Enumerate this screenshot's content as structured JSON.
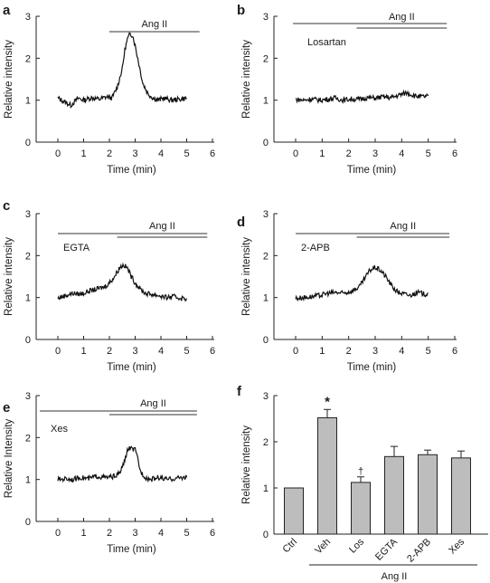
{
  "chart_data": [
    {
      "panel": "a",
      "type": "line",
      "xlabel": "Time (min)",
      "ylabel": "Relative intensity",
      "xlim": [
        -0.5,
        6
      ],
      "ylim": [
        0,
        3
      ],
      "xticks": [
        "0",
        "1",
        "2",
        "3",
        "4",
        "5",
        "6"
      ],
      "yticks": [
        "0",
        "1",
        "2",
        "3"
      ],
      "bars": [
        {
          "label": "Ang II",
          "x0": 2.0,
          "x1": 5.5
        }
      ],
      "series": [
        {
          "x": [
            0,
            0.2,
            0.5,
            0.8,
            1,
            1.3,
            1.6,
            1.9,
            2.1,
            2.3,
            2.5,
            2.6,
            2.7,
            2.8,
            2.9,
            3.0,
            3.1,
            3.2,
            3.3,
            3.5,
            3.7,
            3.9,
            4.1,
            4.4,
            4.7,
            5.0
          ],
          "y": [
            1.05,
            0.98,
            0.88,
            1.05,
            1.0,
            1.06,
            1.02,
            1.08,
            1.05,
            1.3,
            1.75,
            2.2,
            2.45,
            2.58,
            2.55,
            2.3,
            2.0,
            1.7,
            1.4,
            1.15,
            1.05,
            1.0,
            1.05,
            1.0,
            1.02,
            1.05
          ]
        }
      ]
    },
    {
      "panel": "b",
      "type": "line",
      "xlabel": "Time (min)",
      "ylabel": "Relative intensity",
      "xlim": [
        -0.5,
        6
      ],
      "ylim": [
        0,
        3
      ],
      "xticks": [
        "0",
        "1",
        "2",
        "3",
        "4",
        "5",
        "6"
      ],
      "yticks": [
        "0",
        "1",
        "2",
        "3"
      ],
      "bars": [
        {
          "label": "Losartan",
          "x0": -0.1,
          "x1": 5.7
        },
        {
          "label": "Ang II",
          "x0": 2.3,
          "x1": 5.7
        }
      ],
      "series": [
        {
          "x": [
            0,
            0.3,
            0.6,
            0.9,
            1.2,
            1.5,
            1.8,
            2.1,
            2.4,
            2.7,
            3.0,
            3.3,
            3.6,
            3.9,
            4.2,
            4.5,
            4.8,
            5.0
          ],
          "y": [
            1.02,
            1.0,
            1.03,
            1.0,
            1.02,
            1.05,
            1.0,
            1.03,
            1.02,
            1.06,
            1.05,
            1.08,
            1.06,
            1.12,
            1.18,
            1.1,
            1.08,
            1.1
          ]
        }
      ]
    },
    {
      "panel": "c",
      "type": "line",
      "xlabel": "Time (min)",
      "ylabel": "Relative intensity",
      "xlim": [
        -0.5,
        6
      ],
      "ylim": [
        0,
        3
      ],
      "xticks": [
        "0",
        "1",
        "2",
        "3",
        "4",
        "5",
        "6"
      ],
      "yticks": [
        "0",
        "1",
        "2",
        "3"
      ],
      "bars": [
        {
          "label": "EGTA",
          "x0": 0.0,
          "x1": 5.8
        },
        {
          "label": "Ang II",
          "x0": 2.3,
          "x1": 5.8
        }
      ],
      "series": [
        {
          "x": [
            0,
            0.3,
            0.6,
            0.9,
            1.2,
            1.5,
            1.8,
            2.0,
            2.2,
            2.4,
            2.55,
            2.7,
            2.85,
            3.0,
            3.2,
            3.4,
            3.6,
            3.9,
            4.2,
            4.5,
            4.8,
            5.0
          ],
          "y": [
            0.98,
            1.05,
            1.1,
            1.08,
            1.15,
            1.2,
            1.25,
            1.35,
            1.5,
            1.72,
            1.78,
            1.7,
            1.5,
            1.35,
            1.2,
            1.1,
            1.08,
            1.05,
            1.0,
            1.02,
            0.98,
            0.98
          ]
        }
      ]
    },
    {
      "panel": "d",
      "type": "line",
      "xlabel": "Time (min)",
      "ylabel": "Relative intensity",
      "xlim": [
        -0.5,
        6
      ],
      "ylim": [
        0,
        3
      ],
      "xticks": [
        "0",
        "1",
        "2",
        "3",
        "4",
        "5",
        "6"
      ],
      "yticks": [
        "0",
        "1",
        "2",
        "3"
      ],
      "bars": [
        {
          "label": "2-APB",
          "x0": 0.0,
          "x1": 5.8
        },
        {
          "label": "Ang II",
          "x0": 2.3,
          "x1": 5.8
        }
      ],
      "series": [
        {
          "x": [
            0,
            0.3,
            0.6,
            0.9,
            1.2,
            1.5,
            1.8,
            2.1,
            2.4,
            2.6,
            2.8,
            3.0,
            3.2,
            3.4,
            3.6,
            3.8,
            4.0,
            4.3,
            4.6,
            4.9,
            5.0
          ],
          "y": [
            0.98,
            1.0,
            1.02,
            1.05,
            1.1,
            1.12,
            1.1,
            1.15,
            1.25,
            1.45,
            1.65,
            1.72,
            1.65,
            1.5,
            1.3,
            1.15,
            1.1,
            1.05,
            1.12,
            1.08,
            1.1
          ]
        }
      ]
    },
    {
      "panel": "e",
      "type": "line",
      "xlabel": "Time (min)",
      "ylabel": "Relative Intensity",
      "xlim": [
        -0.5,
        6
      ],
      "ylim": [
        0,
        3
      ],
      "xticks": [
        "0",
        "1",
        "2",
        "3",
        "4",
        "5",
        "6"
      ],
      "yticks": [
        "0",
        "1",
        "2",
        "3"
      ],
      "bars": [
        {
          "label": "Xes",
          "x0": -0.7,
          "x1": 5.4
        },
        {
          "label": "Ang II",
          "x0": 2.0,
          "x1": 5.4
        }
      ],
      "series": [
        {
          "x": [
            0,
            0.3,
            0.6,
            0.9,
            1.2,
            1.5,
            1.8,
            2.0,
            2.2,
            2.4,
            2.6,
            2.7,
            2.8,
            2.9,
            3.0,
            3.1,
            3.2,
            3.4,
            3.6,
            3.9,
            4.2,
            4.5,
            4.8,
            5.0
          ],
          "y": [
            1.0,
            1.02,
            1.0,
            1.05,
            1.02,
            1.08,
            1.05,
            1.05,
            1.08,
            1.15,
            1.45,
            1.7,
            1.75,
            1.72,
            1.7,
            1.5,
            1.2,
            1.05,
            1.0,
            1.05,
            1.0,
            1.02,
            1.05,
            1.05
          ]
        }
      ]
    },
    {
      "panel": "f",
      "type": "bar",
      "ylabel": "Relative intensity",
      "ylim": [
        0,
        3
      ],
      "yticks": [
        "0",
        "1",
        "2",
        "3"
      ],
      "categories": [
        "Ctrl",
        "Veh",
        "Los",
        "EGTA",
        "2-APB",
        "Xes"
      ],
      "values": [
        1.0,
        2.52,
        1.12,
        1.68,
        1.72,
        1.65
      ],
      "errors": [
        0,
        0.18,
        0.12,
        0.22,
        0.1,
        0.15
      ],
      "markers": {
        "Veh": "*",
        "Los": "†"
      },
      "group_label": "Ang II",
      "group_range": [
        "Veh",
        "Xes"
      ],
      "bar_color": "#bdbdbd"
    }
  ]
}
